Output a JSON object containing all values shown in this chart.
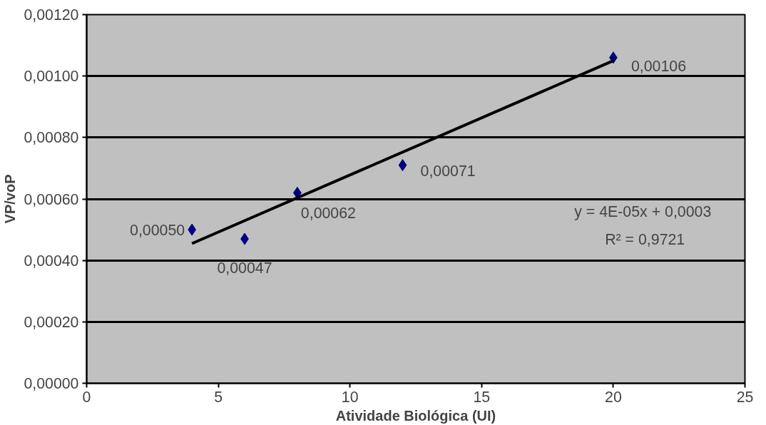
{
  "chart_data": {
    "type": "scatter",
    "xlabel": "Atividade Biológica (UI)",
    "ylabel": "VP/voP",
    "x": [
      4,
      6,
      8,
      12,
      20
    ],
    "xlim": [
      0,
      25
    ],
    "xticks": [
      0,
      5,
      10,
      15,
      20,
      25
    ],
    "ylim": [
      0,
      0.0012
    ],
    "yticks": [
      {
        "value": 0,
        "label": "0,00000"
      },
      {
        "value": 0.0002,
        "label": "0,00020"
      },
      {
        "value": 0.0004,
        "label": "0,00040"
      },
      {
        "value": 0.0006,
        "label": "0,00060"
      },
      {
        "value": 0.0008,
        "label": "0,00080"
      },
      {
        "value": 0.001,
        "label": "0,00100"
      },
      {
        "value": 0.0012,
        "label": "0,00120"
      }
    ],
    "series": [
      {
        "color": "#000080",
        "marker": "diamond",
        "values": [
          0.0005,
          0.00047,
          0.00062,
          0.00071,
          0.00106
        ],
        "value_labels": [
          "0,00050",
          "0,00047",
          "0,00062",
          "0,00071",
          "0,00106"
        ]
      },
      {
        "type": "line",
        "color": "#000000",
        "x": [
          4,
          20
        ],
        "values": [
          0.000455,
          0.00105
        ]
      }
    ],
    "annotations": [
      "y = 4E-05x  + 0,0003\nR² = 0,9721"
    ],
    "grid": "y"
  }
}
